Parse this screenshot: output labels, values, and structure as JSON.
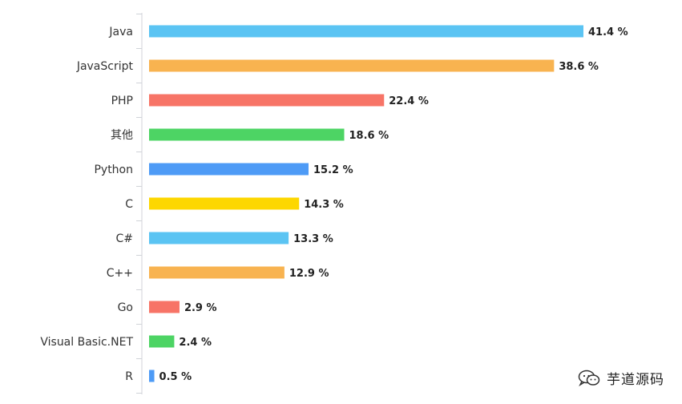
{
  "chart_data": {
    "type": "bar",
    "orientation": "horizontal",
    "categories": [
      "Java",
      "JavaScript",
      "PHP",
      "其他",
      "Python",
      "C",
      "C#",
      "C++",
      "Go",
      "Visual Basic.NET",
      "R"
    ],
    "values": [
      41.4,
      38.6,
      22.4,
      18.6,
      15.2,
      14.3,
      13.3,
      12.9,
      2.9,
      2.4,
      0.5
    ],
    "value_labels": [
      "41.4 %",
      "38.6 %",
      "22.4 %",
      "18.6 %",
      "15.2 %",
      "14.3 %",
      "13.3 %",
      "12.9 %",
      "2.9 %",
      "2.4 %",
      "0.5 %"
    ],
    "colors": [
      "#5BC4F3",
      "#F8B350",
      "#F77467",
      "#4DD464",
      "#4E9BF6",
      "#FDD700",
      "#5BC4F3",
      "#F8B350",
      "#F77467",
      "#4DD464",
      "#4E9BF6"
    ],
    "title": "",
    "xlabel": "",
    "ylabel": "",
    "xlim": [
      0,
      41.4
    ],
    "grid": false,
    "legend": "none"
  },
  "watermark": {
    "text": "芋道源码",
    "icon": "wechat-icon"
  }
}
